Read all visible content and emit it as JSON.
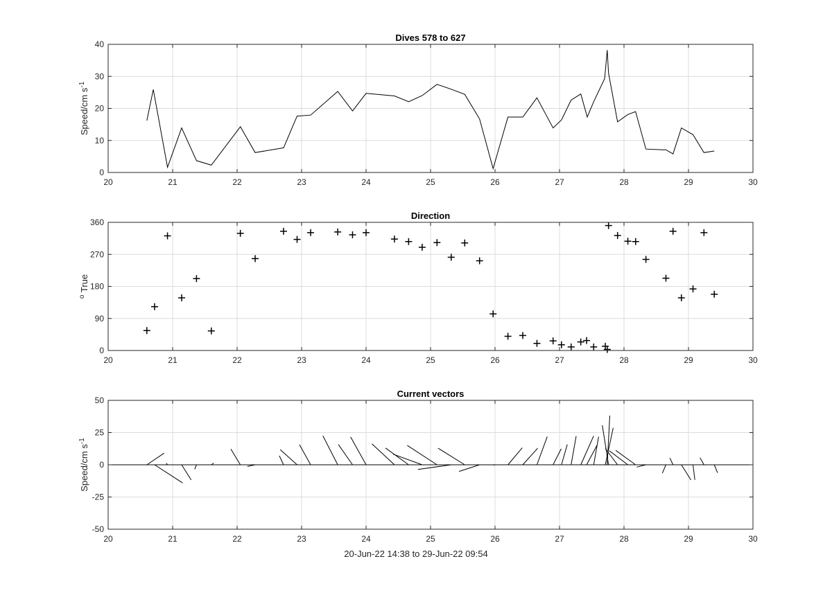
{
  "xlabel": "20-Jun-22 14:38 to 29-Jun-22 09:54",
  "chart_data": [
    {
      "type": "line",
      "title": "Dives 578 to 627",
      "ylabel": "Speed/cm s",
      "ylabel_superscript": "-1",
      "xlim": [
        20,
        30
      ],
      "ylim": [
        0,
        40
      ],
      "xticks": [
        20,
        21,
        22,
        23,
        24,
        25,
        26,
        27,
        28,
        29,
        30
      ],
      "yticks": [
        0,
        10,
        20,
        30,
        40
      ],
      "grid": true,
      "x": [
        20.6,
        20.7,
        20.92,
        21.14,
        21.37,
        21.6,
        22.05,
        22.28,
        22.72,
        22.93,
        23.14,
        23.56,
        23.79,
        24.0,
        24.44,
        24.66,
        24.87,
        25.1,
        25.32,
        25.53,
        25.76,
        25.97,
        26.2,
        26.43,
        26.65,
        26.9,
        27.03,
        27.18,
        27.33,
        27.43,
        27.53,
        27.7,
        27.74,
        27.76,
        27.9,
        28.06,
        28.18,
        28.34,
        28.6,
        28.65,
        28.76,
        28.89,
        29.07,
        29.24,
        29.4
      ],
      "y": [
        16.2,
        25.9,
        1.6,
        13.9,
        3.7,
        2.3,
        14.3,
        6.2,
        7.7,
        17.6,
        17.9,
        25.3,
        19.2,
        24.7,
        23.9,
        22.1,
        24.0,
        27.5,
        26.0,
        24.4,
        16.7,
        1.2,
        17.3,
        17.3,
        23.3,
        13.9,
        16.4,
        22.6,
        24.5,
        17.3,
        22.1,
        29.3,
        38.2,
        31.0,
        15.8,
        18.1,
        19.0,
        7.3,
        7.1,
        7.1,
        5.8,
        13.9,
        11.8,
        6.2,
        6.7
      ]
    },
    {
      "type": "scatter",
      "marker": "+",
      "title": "Direction",
      "ylabel": "True",
      "ylabel_prefix": "o",
      "xlim": [
        20,
        30
      ],
      "ylim": [
        0,
        360
      ],
      "xticks": [
        20,
        21,
        22,
        23,
        24,
        25,
        26,
        27,
        28,
        29,
        30
      ],
      "yticks": [
        0,
        90,
        180,
        270,
        360
      ],
      "grid": true,
      "x": [
        20.6,
        20.72,
        20.92,
        21.14,
        21.37,
        21.6,
        22.05,
        22.28,
        22.72,
        22.93,
        23.14,
        23.56,
        23.79,
        24.0,
        24.44,
        24.66,
        24.87,
        25.1,
        25.32,
        25.53,
        25.76,
        25.97,
        26.2,
        26.43,
        26.65,
        26.9,
        27.03,
        27.18,
        27.33,
        27.42,
        27.53,
        27.71,
        27.74,
        27.76,
        27.9,
        28.06,
        28.18,
        28.34,
        28.65,
        28.76,
        28.89,
        29.07,
        29.24,
        29.4
      ],
      "y": [
        56,
        123,
        322,
        148,
        202,
        55,
        329,
        258,
        335,
        312,
        331,
        333,
        325,
        331,
        313,
        306,
        290,
        303,
        262,
        302,
        252,
        103,
        40,
        42,
        20,
        27,
        16,
        10,
        24,
        28,
        10,
        12,
        3,
        351,
        323,
        307,
        306,
        256,
        203,
        335,
        148,
        173,
        331,
        158
      ]
    },
    {
      "type": "vector",
      "title": "Current vectors",
      "ylabel": "Speed/cm s",
      "ylabel_superscript": "-1",
      "xlim": [
        20,
        30
      ],
      "ylim": [
        -50,
        50
      ],
      "xticks": [
        20,
        21,
        22,
        23,
        24,
        25,
        26,
        27,
        28,
        29,
        30
      ],
      "yticks": [
        -50,
        -25,
        0,
        25,
        50
      ],
      "grid": true,
      "x": [
        20.6,
        20.72,
        20.92,
        21.14,
        21.37,
        21.6,
        22.05,
        22.28,
        22.72,
        22.93,
        23.14,
        23.56,
        23.79,
        24.0,
        24.44,
        24.66,
        24.87,
        25.1,
        25.32,
        25.53,
        25.76,
        25.97,
        26.2,
        26.43,
        26.65,
        26.9,
        27.03,
        27.18,
        27.33,
        27.42,
        27.53,
        27.71,
        27.74,
        27.76,
        27.9,
        28.06,
        28.18,
        28.34,
        28.65,
        28.76,
        28.89,
        29.07,
        29.24,
        29.4
      ],
      "speed": [
        16.2,
        25.9,
        1.6,
        13.9,
        3.7,
        2.3,
        14.3,
        6.2,
        7.7,
        17.6,
        17.9,
        25.3,
        19.2,
        24.7,
        23.9,
        22.1,
        24.0,
        27.5,
        26.0,
        24.4,
        16.7,
        1.2,
        17.3,
        17.3,
        23.3,
        13.9,
        16.4,
        22.6,
        24.5,
        17.3,
        22.1,
        29.3,
        38.2,
        31.0,
        15.8,
        18.1,
        19.0,
        7.3,
        7.1,
        5.8,
        13.9,
        11.8,
        6.2,
        6.7
      ],
      "direction": [
        56,
        123,
        322,
        148,
        202,
        55,
        329,
        258,
        335,
        312,
        331,
        333,
        325,
        331,
        313,
        306,
        290,
        303,
        262,
        302,
        252,
        103,
        40,
        42,
        20,
        27,
        16,
        10,
        24,
        28,
        10,
        12,
        3,
        351,
        323,
        307,
        306,
        256,
        203,
        335,
        148,
        173,
        331,
        158
      ]
    }
  ]
}
